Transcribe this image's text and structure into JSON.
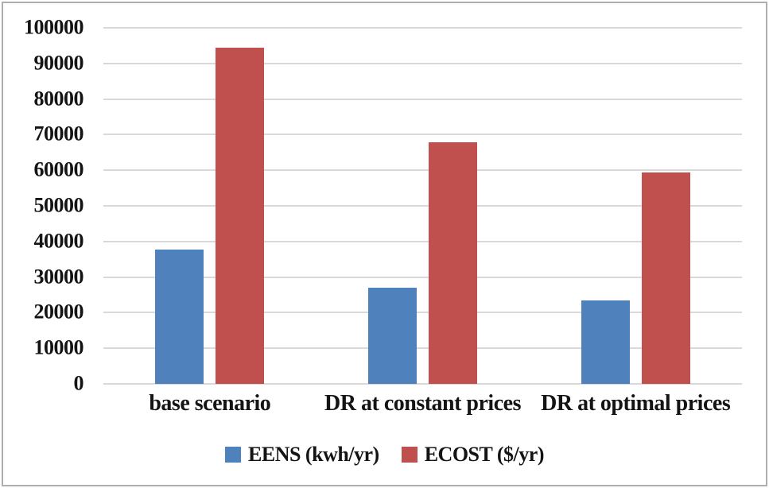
{
  "chart_data": {
    "type": "bar",
    "title": "",
    "categories": [
      "base scenario",
      "DR at constant prices",
      "DR at optimal prices"
    ],
    "series": [
      {
        "name": "EENS (kwh/yr)",
        "color": "#4F81BD",
        "values": [
          37800,
          27100,
          23500
        ]
      },
      {
        "name": "ECOST ($/yr)",
        "color": "#C0504D",
        "values": [
          94500,
          67900,
          59400
        ]
      }
    ],
    "xlabel": "",
    "ylabel": "",
    "ylim": [
      0,
      100000
    ],
    "ytick_step": 10000,
    "yticks": [
      100000,
      90000,
      80000,
      70000,
      60000,
      50000,
      40000,
      30000,
      20000,
      10000,
      0
    ],
    "grid": true,
    "legend_position": "bottom"
  },
  "style": {
    "gridline_color": "#D9D9D9",
    "frame_border_color": "#AEAEAE",
    "text_color": "#141414",
    "background": "#FFFFFF"
  }
}
